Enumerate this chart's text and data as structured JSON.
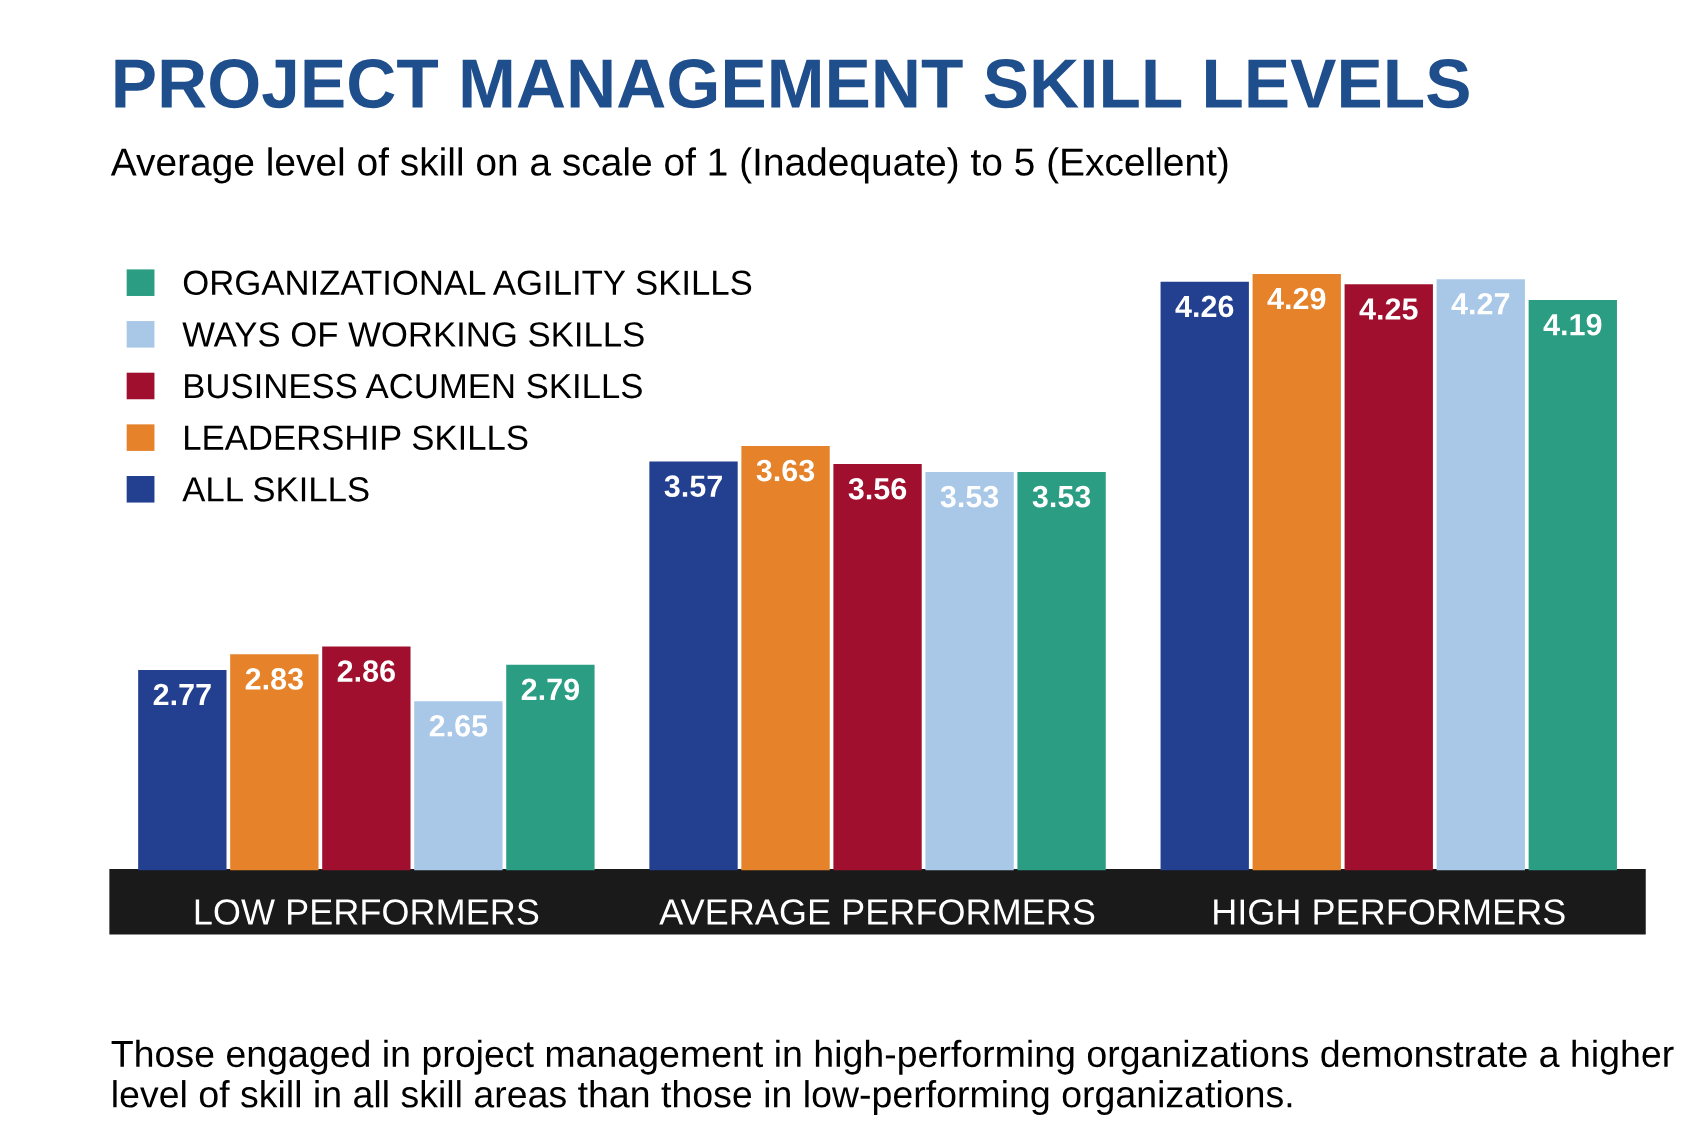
{
  "chart_data": {
    "type": "bar",
    "title": "PROJECT MANAGEMENT SKILL LEVELS",
    "subtitle": "Average level of skill on a scale of 1 (Inadequate) to 5 (Excellent)",
    "categories": [
      "LOW PERFORMERS",
      "AVERAGE PERFORMERS",
      "HIGH PERFORMERS"
    ],
    "series": [
      {
        "name": "ALL SKILLS",
        "color": "#233f8f",
        "values": [
          2.77,
          3.57,
          4.26
        ]
      },
      {
        "name": "LEADERSHIP SKILLS",
        "color": "#e5822a",
        "values": [
          2.83,
          3.63,
          4.29
        ]
      },
      {
        "name": "BUSINESS ACUMEN SKILLS",
        "color": "#a0102e",
        "values": [
          2.86,
          3.56,
          4.25
        ]
      },
      {
        "name": "WAYS OF WORKING SKILLS",
        "color": "#a9c8e8",
        "values": [
          2.65,
          3.53,
          4.27
        ]
      },
      {
        "name": "ORGANIZATIONAL AGILITY SKILLS",
        "color": "#2a9d82",
        "values": [
          2.79,
          3.53,
          4.19
        ]
      }
    ],
    "ylim": [
      2.0,
      4.29
    ],
    "data_labels": true,
    "legend": "top left",
    "tick_labels": "x",
    "grid": false,
    "annotations": [
      "Those engaged in project management in high-performing organizations demonstrate a higher level of skill in all skill areas than those in low-performing organizations."
    ]
  }
}
